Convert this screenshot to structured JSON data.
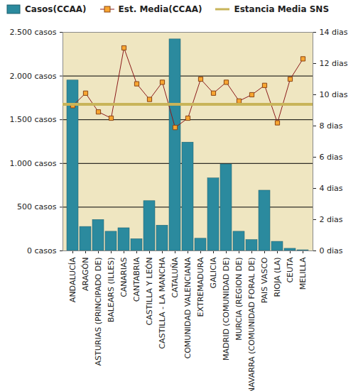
{
  "chart_data": {
    "type": "bar",
    "categories": [
      "ANDALUCÍA",
      "ARAGÓN",
      "ASTURIAS (PRINCIPADO DE)",
      "BALEARS (ILLES)",
      "CANARIAS",
      "CANTABRIA",
      "CASTILLA Y LEÓN",
      "CASTILLA - LA MANCHA",
      "CATALUÑA",
      "COMUNIDAD VALENCIANA",
      "EXTREMADURA",
      "GALICIA",
      "MADRID (COMUNIDAD DE)",
      "MURCIA (REGION DE)",
      "NAVARRA (COMUNIDAD FORAL DE)",
      "PAIS VASCO",
      "RIOJA (LA)",
      "CEUTA",
      "MELILLA"
    ],
    "series": [
      {
        "name": "Casos(CCAA)",
        "type": "bar",
        "color": "#2b8a9e",
        "values": [
          1950,
          275,
          355,
          220,
          260,
          135,
          570,
          290,
          2420,
          1240,
          140,
          830,
          990,
          220,
          125,
          690,
          105,
          25,
          8
        ]
      },
      {
        "name": "Est. Media(CCAA)",
        "type": "line",
        "axis": "y2",
        "color": "#8b1a1a",
        "marker": "square",
        "values": [
          9.3,
          10.1,
          8.9,
          8.5,
          13.0,
          10.7,
          9.7,
          10.8,
          7.9,
          8.5,
          11.0,
          10.1,
          10.8,
          9.6,
          10.0,
          10.6,
          8.2,
          11.0,
          12.3
        ]
      },
      {
        "name": "Estancia Media SNS",
        "type": "rule",
        "axis": "y2",
        "color": "#c8b45a",
        "values": [
          9.4,
          9.4,
          9.4,
          9.4,
          9.4,
          9.4,
          9.4,
          9.4,
          9.4,
          9.4,
          9.4,
          9.4,
          9.4,
          9.4,
          9.4,
          9.4,
          9.4,
          9.4,
          9.4
        ]
      }
    ],
    "ylim": [
      0,
      2500
    ],
    "yticks": [
      {
        "value": 0,
        "label": "0 casos"
      },
      {
        "value": 500,
        "label": "500 casos"
      },
      {
        "value": 1000,
        "label": "1.000 casos"
      },
      {
        "value": 1500,
        "label": "1.500 casos"
      },
      {
        "value": 2000,
        "label": "2.000 casos"
      },
      {
        "value": 2500,
        "label": "2.500 casos"
      }
    ],
    "y2lim": [
      0,
      14
    ],
    "y2ticks": [
      {
        "value": 0,
        "label": "0 dias"
      },
      {
        "value": 2,
        "label": "2 dias"
      },
      {
        "value": 4,
        "label": "4 dias"
      },
      {
        "value": 6,
        "label": "6 dias"
      },
      {
        "value": 8,
        "label": "8 dias"
      },
      {
        "value": 10,
        "label": "10 dias"
      },
      {
        "value": 12,
        "label": "12 dias"
      },
      {
        "value": 14,
        "label": "14 dias"
      }
    ],
    "grid": true,
    "legend": "top"
  }
}
